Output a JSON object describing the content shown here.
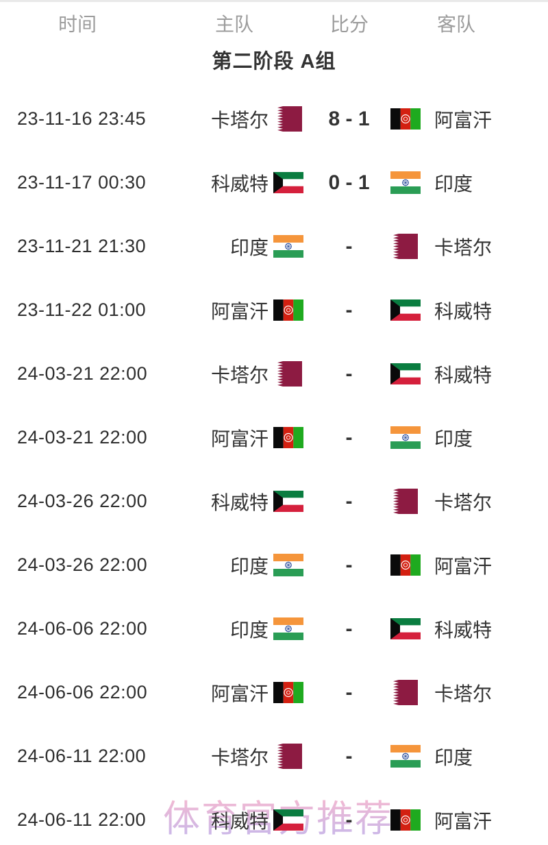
{
  "header": {
    "columns": [
      "时间",
      "主队",
      "比分",
      "客队"
    ]
  },
  "group_title": "第二阶段 A组",
  "watermark": "体育官方推荐",
  "matches": [
    {
      "time": "23-11-16 23:45",
      "home": "卡塔尔",
      "home_flag": "qatar",
      "score": "8 - 1",
      "away": "阿富汗",
      "away_flag": "afghanistan"
    },
    {
      "time": "23-11-17 00:30",
      "home": "科威特",
      "home_flag": "kuwait",
      "score": "0 - 1",
      "away": "印度",
      "away_flag": "india"
    },
    {
      "time": "23-11-21 21:30",
      "home": "印度",
      "home_flag": "india",
      "score": "-",
      "away": "卡塔尔",
      "away_flag": "qatar"
    },
    {
      "time": "23-11-22 01:00",
      "home": "阿富汗",
      "home_flag": "afghanistan",
      "score": "-",
      "away": "科威特",
      "away_flag": "kuwait"
    },
    {
      "time": "24-03-21 22:00",
      "home": "卡塔尔",
      "home_flag": "qatar",
      "score": "-",
      "away": "科威特",
      "away_flag": "kuwait"
    },
    {
      "time": "24-03-21 22:00",
      "home": "阿富汗",
      "home_flag": "afghanistan",
      "score": "-",
      "away": "印度",
      "away_flag": "india"
    },
    {
      "time": "24-03-26 22:00",
      "home": "科威特",
      "home_flag": "kuwait",
      "score": "-",
      "away": "卡塔尔",
      "away_flag": "qatar"
    },
    {
      "time": "24-03-26 22:00",
      "home": "印度",
      "home_flag": "india",
      "score": "-",
      "away": "阿富汗",
      "away_flag": "afghanistan"
    },
    {
      "time": "24-06-06 22:00",
      "home": "印度",
      "home_flag": "india",
      "score": "-",
      "away": "科威特",
      "away_flag": "kuwait"
    },
    {
      "time": "24-06-06 22:00",
      "home": "阿富汗",
      "home_flag": "afghanistan",
      "score": "-",
      "away": "卡塔尔",
      "away_flag": "qatar"
    },
    {
      "time": "24-06-11 22:00",
      "home": "卡塔尔",
      "home_flag": "qatar",
      "score": "-",
      "away": "印度",
      "away_flag": "india"
    },
    {
      "time": "24-06-11 22:00",
      "home": "科威特",
      "home_flag": "kuwait",
      "score": "-",
      "away": "阿富汗",
      "away_flag": "afghanistan"
    }
  ],
  "colors": {
    "text": "#333333",
    "muted_header": "#9c9c9c",
    "watermark_pink": "#f3a8c6",
    "watermark_purple": "#b9a6e6"
  },
  "flag_colors": {
    "qatar": {
      "maroon": "#8d1b42",
      "white": "#ffffff"
    },
    "afghanistan": {
      "black": "#0a0a0a",
      "red": "#d32011",
      "green": "#1faa1f",
      "emblem": "#ffffff"
    },
    "kuwait": {
      "green": "#0a7d40",
      "white": "#ffffff",
      "red": "#d5203c",
      "black": "#0a0a0a"
    },
    "india": {
      "saffron": "#f5953b",
      "white": "#ffffff",
      "green": "#2a9d55",
      "navy": "#2a4c9b"
    }
  }
}
